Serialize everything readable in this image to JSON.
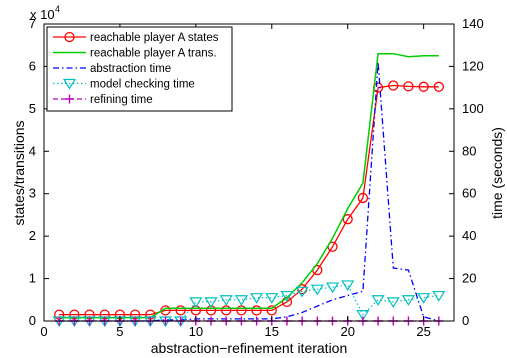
{
  "chart_data": {
    "type": "line",
    "xlabel": "abstraction−refinement iteration",
    "ylabel_left": "states/transitions",
    "ylabel_right": "time (seconds)",
    "left_multiplier_label": "x 10",
    "left_multiplier_exp": "4",
    "xlim": [
      0,
      27
    ],
    "ylim_left": [
      0,
      70000
    ],
    "ylim_right": [
      0,
      140
    ],
    "xticks": [
      "0",
      "5",
      "10",
      "15",
      "20",
      "25"
    ],
    "yticks_left": [
      "0",
      "1",
      "2",
      "3",
      "4",
      "5",
      "6",
      "7"
    ],
    "yticks_right": [
      "0",
      "20",
      "40",
      "60",
      "80",
      "100",
      "120",
      "140"
    ],
    "grid": false,
    "legend_position": "top-left",
    "colors": {
      "states": "#ff0000",
      "trans": "#00cc00",
      "abstraction": "#0000ff",
      "model_checking": "#00bfbf",
      "refining": "#bf00bf"
    },
    "series": [
      {
        "name": "reachable player A states",
        "axis": "left",
        "style": "solid-circle",
        "x": [
          1,
          2,
          3,
          4,
          5,
          6,
          7,
          8,
          9,
          10,
          11,
          12,
          13,
          14,
          15,
          16,
          17,
          18,
          19,
          20,
          21,
          22,
          23,
          24,
          25,
          26
        ],
        "values": [
          1500,
          1500,
          1500,
          1500,
          1500,
          1500,
          1500,
          2500,
          2500,
          2500,
          2500,
          2500,
          2500,
          2500,
          2500,
          4500,
          7500,
          12000,
          17500,
          24000,
          29000,
          55000,
          55500,
          55300,
          55200,
          55200
        ]
      },
      {
        "name": "reachable player A trans.",
        "axis": "left",
        "style": "solid",
        "x": [
          1,
          2,
          3,
          4,
          5,
          6,
          7,
          8,
          9,
          10,
          11,
          12,
          13,
          14,
          15,
          16,
          17,
          18,
          19,
          20,
          21,
          22,
          23,
          24,
          25,
          26
        ],
        "values": [
          800,
          800,
          800,
          800,
          800,
          800,
          800,
          3000,
          3000,
          3000,
          3000,
          3000,
          3000,
          3000,
          3000,
          5500,
          9000,
          13500,
          19500,
          26500,
          32500,
          63000,
          63000,
          62300,
          62500,
          62500
        ]
      },
      {
        "name": "abstraction time",
        "axis": "right",
        "style": "dashdot",
        "x": [
          1,
          2,
          3,
          4,
          5,
          6,
          7,
          8,
          9,
          10,
          11,
          12,
          13,
          14,
          15,
          16,
          17,
          18,
          19,
          20,
          21,
          22,
          23,
          24,
          25,
          26
        ],
        "values": [
          0,
          0,
          0,
          0,
          0,
          0,
          0,
          0.5,
          0.5,
          1,
          1,
          1,
          1,
          1,
          1,
          2,
          4,
          7,
          10,
          12,
          14,
          122,
          25,
          24,
          2,
          0
        ]
      },
      {
        "name": "model checking time",
        "axis": "right",
        "style": "dotted-triangle",
        "x": [
          1,
          2,
          3,
          4,
          5,
          6,
          7,
          8,
          9,
          10,
          11,
          12,
          13,
          14,
          15,
          16,
          17,
          18,
          19,
          20,
          21,
          22,
          23,
          24,
          25,
          26
        ],
        "values": [
          0,
          0,
          0,
          0,
          0,
          0,
          0,
          0,
          0,
          9,
          9,
          10,
          10,
          11,
          11,
          12,
          14,
          15,
          16,
          17,
          3,
          10,
          9,
          10,
          11,
          12
        ]
      },
      {
        "name": "refining time",
        "axis": "right",
        "style": "dashed-plus",
        "x": [
          1,
          2,
          3,
          4,
          5,
          6,
          7,
          8,
          9,
          10,
          11,
          12,
          13,
          14,
          15,
          16,
          17,
          18,
          19,
          20,
          21,
          22,
          23,
          24,
          25,
          26
        ],
        "values": [
          0,
          0,
          0,
          0,
          0,
          0,
          0,
          0,
          0,
          0,
          0,
          0,
          0,
          0,
          0,
          0,
          0,
          0,
          0,
          0,
          0,
          0,
          0,
          0,
          0,
          0
        ]
      }
    ]
  }
}
